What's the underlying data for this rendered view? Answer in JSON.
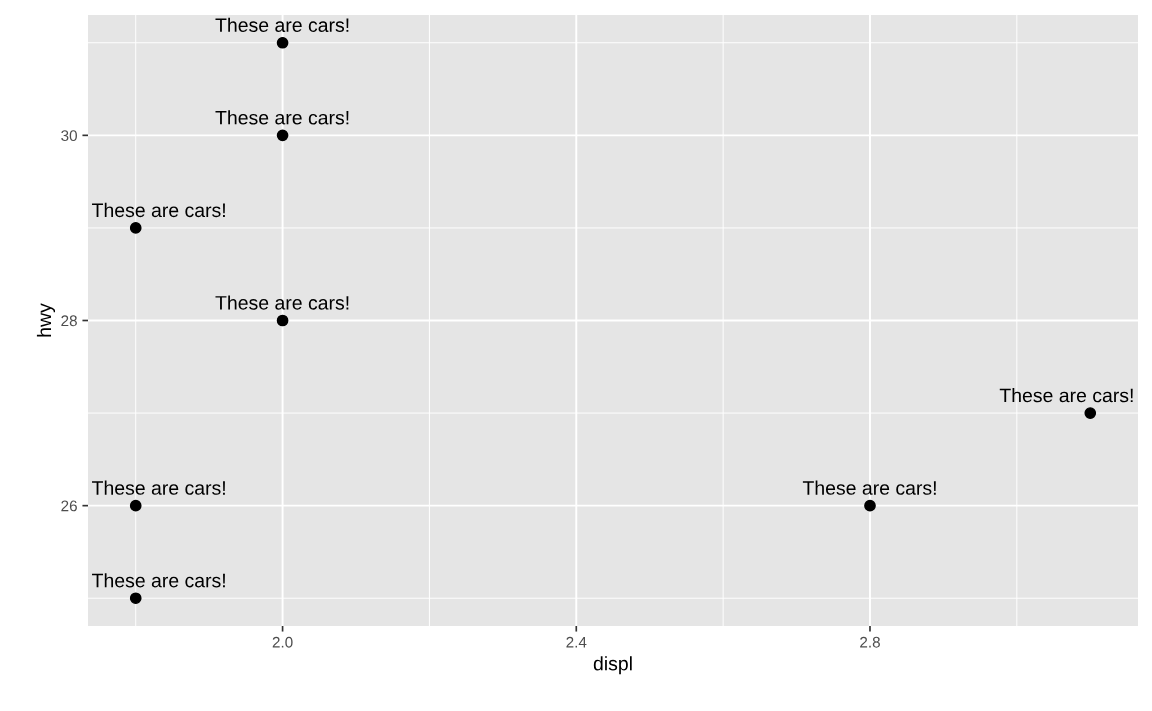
{
  "chart_data": {
    "type": "scatter",
    "xlabel": "displ",
    "ylabel": "hwy",
    "x": [
      1.8,
      1.8,
      1.8,
      2.0,
      2.0,
      2.0,
      2.8,
      3.1
    ],
    "values": [
      29,
      26,
      25,
      31,
      30,
      28,
      26,
      27
    ],
    "color": "#000000",
    "marker": "circle",
    "xlim": [
      1.735,
      3.165
    ],
    "ylim": [
      24.7,
      31.3
    ],
    "xticks": [
      {
        "value": 2.0,
        "label": "2.0"
      },
      {
        "value": 2.4,
        "label": "2.4"
      },
      {
        "value": 2.8,
        "label": "2.8"
      }
    ],
    "yticks": [
      26,
      28,
      30
    ],
    "grid": true,
    "annotations": [
      {
        "text": "These are cars!",
        "x": 1.8,
        "y": 29
      },
      {
        "text": "These are cars!",
        "x": 1.8,
        "y": 26
      },
      {
        "text": "These are cars!",
        "x": 1.8,
        "y": 25
      },
      {
        "text": "These are cars!",
        "x": 2.0,
        "y": 31
      },
      {
        "text": "These are cars!",
        "x": 2.0,
        "y": 30
      },
      {
        "text": "These are cars!",
        "x": 2.0,
        "y": 28
      },
      {
        "text": "These are cars!",
        "x": 2.8,
        "y": 26
      },
      {
        "text": "These are cars!",
        "x": 3.1,
        "y": 27
      }
    ]
  }
}
